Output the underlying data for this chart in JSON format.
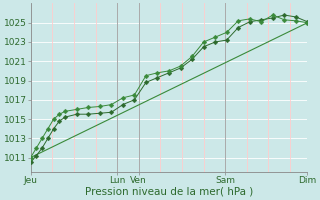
{
  "bg_color": "#cce8e8",
  "grid_color_h": "#ffffff",
  "grid_color_v_minor": "#ffcccc",
  "grid_color_v_major": "#aaaaaa",
  "line_color_dark": "#2d6a2d",
  "line_color_mid": "#3a8a3a",
  "marker_style": "D",
  "marker_size": 2.5,
  "ylabel_ticks": [
    1011,
    1013,
    1015,
    1017,
    1019,
    1021,
    1023,
    1025
  ],
  "ylim": [
    1009.5,
    1027.0
  ],
  "xlabel": "Pression niveau de la mer( hPa )",
  "xlabel_fontsize": 7.5,
  "tick_fontsize": 6.5,
  "x_tick_labels": [
    "Jeu",
    "Lun",
    "Ven",
    "Sam",
    "Dim"
  ],
  "x_tick_positions": [
    0,
    60,
    75,
    135,
    192
  ],
  "xmin": 0,
  "xmax": 192,
  "major_vlines_x": [
    60,
    75,
    135,
    192
  ],
  "minor_vlines_x": [
    15,
    30,
    45,
    90,
    105,
    120,
    150,
    165,
    180
  ],
  "series1_x": [
    0,
    4,
    8,
    12,
    16,
    20,
    24,
    32,
    40,
    48,
    56,
    64,
    72,
    80,
    88,
    96,
    104,
    112,
    120,
    128,
    136,
    144,
    152,
    160,
    168,
    176,
    184,
    192
  ],
  "series1_y": [
    1010.5,
    1011.2,
    1012.0,
    1013.0,
    1014.0,
    1014.8,
    1015.2,
    1015.5,
    1015.5,
    1015.6,
    1015.7,
    1016.5,
    1017.0,
    1018.8,
    1019.3,
    1019.8,
    1020.3,
    1021.2,
    1022.5,
    1023.0,
    1023.2,
    1024.5,
    1025.1,
    1025.3,
    1025.5,
    1025.8,
    1025.6,
    1025.1
  ],
  "series2_x": [
    0,
    4,
    8,
    12,
    16,
    20,
    24,
    32,
    40,
    48,
    56,
    64,
    72,
    80,
    88,
    96,
    104,
    112,
    120,
    128,
    136,
    144,
    152,
    160,
    168,
    176,
    184,
    192
  ],
  "series2_y": [
    1011.0,
    1012.0,
    1013.0,
    1014.0,
    1015.0,
    1015.5,
    1015.8,
    1016.0,
    1016.2,
    1016.3,
    1016.5,
    1017.2,
    1017.5,
    1019.5,
    1019.8,
    1020.0,
    1020.5,
    1021.5,
    1023.0,
    1023.5,
    1024.0,
    1025.2,
    1025.4,
    1025.1,
    1025.8,
    1025.3,
    1025.2,
    1025.0
  ],
  "series3_x": [
    0,
    192
  ],
  "series3_y": [
    1011.0,
    1025.0
  ],
  "figwidth": 3.2,
  "figheight": 2.0,
  "dpi": 100
}
